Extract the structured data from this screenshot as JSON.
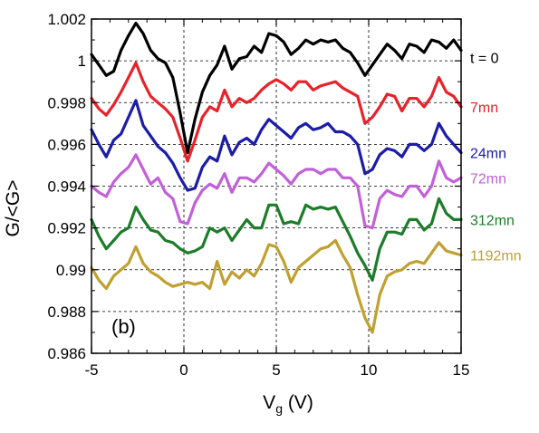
{
  "chart_data": {
    "type": "line",
    "xlabel_main": "V",
    "xlabel_sub": "g",
    "xlabel_unit": " (V)",
    "ylabel": "G/<G>",
    "panel_label": "(b)",
    "xlim": [
      -5,
      15
    ],
    "ylim": [
      0.986,
      1.002
    ],
    "grid": "dashed",
    "xticks": [
      -5,
      0,
      5,
      10,
      15
    ],
    "xtick_labels": [
      "-5",
      "0",
      "5",
      "10",
      "15"
    ],
    "yticks": [
      0.986,
      0.988,
      0.99,
      0.992,
      0.994,
      0.996,
      0.998,
      1,
      1.002
    ],
    "ytick_labels": [
      "0.986",
      "0.988",
      "0.99",
      "0.992",
      "0.994",
      "0.996",
      "0.998",
      "1",
      "1.002"
    ],
    "x": [
      -5,
      -4.6,
      -4.2,
      -3.8,
      -3.4,
      -3.0,
      -2.6,
      -2.2,
      -1.8,
      -1.4,
      -1.0,
      -0.6,
      -0.2,
      0.2,
      0.6,
      1.0,
      1.4,
      1.8,
      2.2,
      2.6,
      3.0,
      3.4,
      3.8,
      4.2,
      4.6,
      5.0,
      5.4,
      5.8,
      6.2,
      6.6,
      7.0,
      7.4,
      7.8,
      8.2,
      8.6,
      9.0,
      9.4,
      9.8,
      10.2,
      10.6,
      11.0,
      11.4,
      11.8,
      12.2,
      12.6,
      13.0,
      13.4,
      13.8,
      14.2,
      14.6,
      15.0
    ],
    "series": [
      {
        "name": "t = 0",
        "color": "#000000",
        "values": [
          1.0003,
          0.9998,
          0.9993,
          0.9995,
          1.0005,
          1.0012,
          1.0018,
          1.0013,
          1.0005,
          1.0001,
          0.9999,
          0.9992,
          0.9975,
          0.9956,
          0.9972,
          0.9985,
          0.9993,
          0.9998,
          1.0007,
          0.9996,
          1.0001,
          1.0002,
          1.0007,
          1.0004,
          1.0013,
          1.0012,
          1.0009,
          1.0003,
          1.0006,
          1.001,
          1.0008,
          1.001,
          1.0009,
          1.001,
          1.0006,
          1.0004,
          0.9999,
          0.9993,
          0.9998,
          1.0003,
          1.0008,
          1.0005,
          1.0001,
          1.0008,
          1.0007,
          1.0004,
          1.001,
          1.0009,
          1.0006,
          1.001,
          1.0005
        ]
      },
      {
        "name": "7mn",
        "color": "#e8222a",
        "values": [
          0.9982,
          0.9977,
          0.9974,
          0.9979,
          0.9985,
          0.9992,
          0.9999,
          0.999,
          0.9983,
          0.998,
          0.9977,
          0.9973,
          0.9963,
          0.9952,
          0.9962,
          0.9973,
          0.9978,
          0.9976,
          0.9986,
          0.9978,
          0.9982,
          0.998,
          0.9982,
          0.9986,
          0.9989,
          0.9991,
          0.9989,
          0.9986,
          0.999,
          0.999,
          0.9986,
          0.9988,
          0.9989,
          0.999,
          0.9987,
          0.9985,
          0.9983,
          0.997,
          0.9973,
          0.9978,
          0.9984,
          0.9983,
          0.9976,
          0.9982,
          0.9982,
          0.9978,
          0.9983,
          0.9992,
          0.9985,
          0.9983,
          0.9978
        ]
      },
      {
        "name": "24mn",
        "color": "#1c1ca8",
        "values": [
          0.9967,
          0.996,
          0.9954,
          0.9962,
          0.9965,
          0.9973,
          0.9981,
          0.9969,
          0.9964,
          0.9959,
          0.9956,
          0.9951,
          0.9944,
          0.9938,
          0.9939,
          0.9949,
          0.9954,
          0.9952,
          0.9964,
          0.9955,
          0.9961,
          0.9963,
          0.996,
          0.9967,
          0.9972,
          0.9969,
          0.9966,
          0.9963,
          0.9968,
          0.997,
          0.9967,
          0.9968,
          0.997,
          0.9966,
          0.9966,
          0.9964,
          0.996,
          0.9946,
          0.9948,
          0.9955,
          0.9958,
          0.9957,
          0.9954,
          0.996,
          0.996,
          0.9957,
          0.996,
          0.997,
          0.9964,
          0.996,
          0.9956
        ]
      },
      {
        "name": "72mn",
        "color": "#c260d8",
        "values": [
          0.994,
          0.9937,
          0.9935,
          0.9942,
          0.9946,
          0.9949,
          0.9955,
          0.9948,
          0.9941,
          0.9944,
          0.9937,
          0.9934,
          0.9923,
          0.9922,
          0.9932,
          0.9938,
          0.9941,
          0.9939,
          0.9946,
          0.9937,
          0.9944,
          0.9944,
          0.9942,
          0.9946,
          0.9951,
          0.9948,
          0.9945,
          0.9941,
          0.9946,
          0.9948,
          0.9948,
          0.9946,
          0.9948,
          0.9948,
          0.9944,
          0.9944,
          0.994,
          0.9921,
          0.992,
          0.9934,
          0.9938,
          0.9936,
          0.9935,
          0.994,
          0.994,
          0.9935,
          0.994,
          0.9952,
          0.9944,
          0.9942,
          0.9944
        ]
      },
      {
        "name": "312mn",
        "color": "#1d7c2a",
        "values": [
          0.9924,
          0.9916,
          0.991,
          0.9914,
          0.9918,
          0.992,
          0.993,
          0.9924,
          0.9919,
          0.9918,
          0.9914,
          0.9913,
          0.991,
          0.9908,
          0.9909,
          0.9911,
          0.992,
          0.9918,
          0.992,
          0.9914,
          0.9919,
          0.9924,
          0.992,
          0.992,
          0.9931,
          0.9931,
          0.9922,
          0.9923,
          0.9922,
          0.9931,
          0.9929,
          0.993,
          0.9929,
          0.993,
          0.9923,
          0.9916,
          0.9908,
          0.9902,
          0.9895,
          0.991,
          0.9918,
          0.9918,
          0.9917,
          0.9924,
          0.9924,
          0.9919,
          0.9922,
          0.9934,
          0.9927,
          0.9924,
          0.9924
        ]
      },
      {
        "name": "1192mn",
        "color": "#c0a030",
        "values": [
          0.9901,
          0.9895,
          0.9891,
          0.9897,
          0.99,
          0.9903,
          0.9911,
          0.9903,
          0.9899,
          0.9897,
          0.9894,
          0.9892,
          0.9893,
          0.9894,
          0.9893,
          0.9894,
          0.9891,
          0.9904,
          0.9893,
          0.9899,
          0.9896,
          0.99,
          0.9897,
          0.9903,
          0.9912,
          0.9911,
          0.9904,
          0.9894,
          0.9901,
          0.9904,
          0.9907,
          0.991,
          0.9911,
          0.9914,
          0.9907,
          0.9901,
          0.9888,
          0.9877,
          0.987,
          0.9888,
          0.9897,
          0.9899,
          0.99,
          0.9903,
          0.9904,
          0.9903,
          0.9908,
          0.9913,
          0.9909,
          0.9908,
          0.9907
        ]
      }
    ]
  }
}
